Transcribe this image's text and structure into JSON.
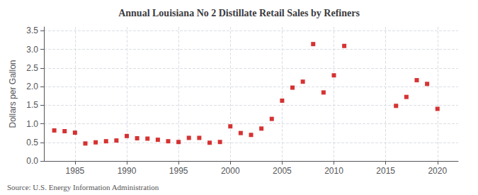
{
  "chart_data": {
    "type": "scatter",
    "title": "Annual Louisiana No 2 Distillate Retail Sales by Refiners",
    "ylabel": "Dollars per Gallon",
    "annotation": "Source: U.S. Energy Information Administration",
    "x": [
      1983,
      1984,
      1985,
      1986,
      1987,
      1988,
      1989,
      1990,
      1991,
      1992,
      1993,
      1994,
      1995,
      1996,
      1997,
      1998,
      1999,
      2000,
      2001,
      2002,
      2003,
      2004,
      2005,
      2006,
      2007,
      2008,
      2009,
      2010,
      2011,
      2016,
      2017,
      2018,
      2019,
      2020
    ],
    "values": [
      0.82,
      0.8,
      0.76,
      0.47,
      0.5,
      0.53,
      0.55,
      0.67,
      0.61,
      0.6,
      0.57,
      0.53,
      0.51,
      0.62,
      0.62,
      0.49,
      0.51,
      0.93,
      0.75,
      0.7,
      0.87,
      1.13,
      1.62,
      1.97,
      2.13,
      3.14,
      1.84,
      2.3,
      3.09,
      1.48,
      1.72,
      2.17,
      2.07,
      1.4
    ],
    "color": "#cc0000",
    "marker": "square",
    "xlim": [
      1982,
      2022
    ],
    "xticks": [
      1985,
      1990,
      1995,
      2000,
      2005,
      2010,
      2015,
      2020
    ],
    "ylim": [
      0.0,
      3.6
    ],
    "yticks": [
      {
        "value": 0,
        "label": "0.0"
      },
      0.5,
      {
        "value": 1,
        "label": "1.0"
      },
      1.5,
      {
        "value": 2,
        "label": "2.0"
      },
      2.5,
      {
        "value": 3,
        "label": "3.0"
      },
      3.5
    ],
    "grid": true
  }
}
